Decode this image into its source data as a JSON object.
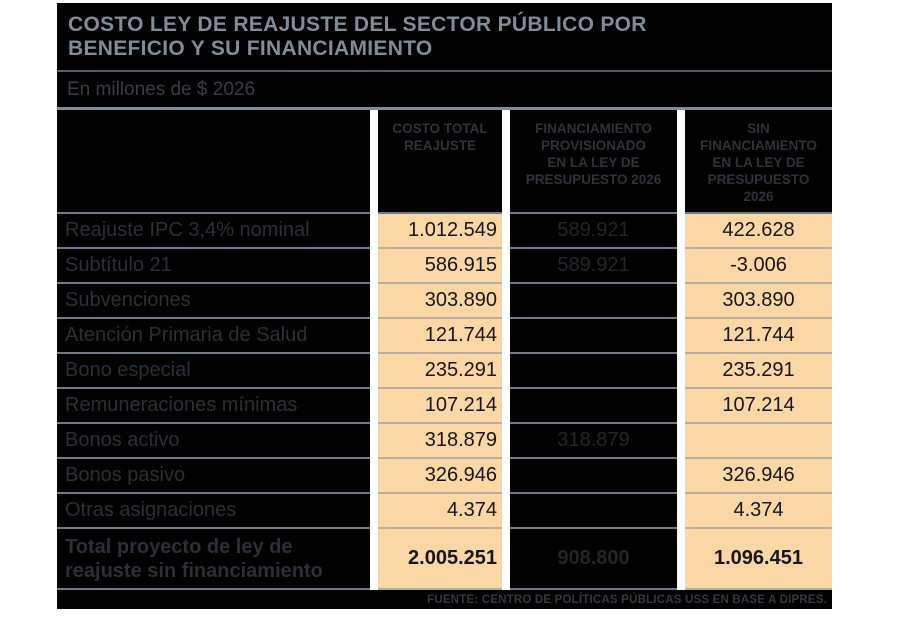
{
  "header": {
    "title": "COSTO LEY DE REAJUSTE DEL SECTOR PÚBLICO POR\nBENEFICIO Y SU FINANCIAMIENTO",
    "subtitle": "En millones de $ 2026"
  },
  "columns": {
    "c1": "COSTO TOTAL\nREAJUSTE",
    "c2": "FINANCIAMIENTO\nPROVISIONADO\nEN LA LEY DE\nPRESUPUESTO 2026",
    "c3": "SIN\nFINANCIAMIENTO\nEN LA LEY DE\nPRESUPUESTO\n2026"
  },
  "rows": [
    {
      "label": "Reajuste IPC 3,4% nominal",
      "c1": "1.012.549",
      "c2": "589.921",
      "c3": "422.628"
    },
    {
      "label": "Subtítulo 21",
      "c1": "586.915",
      "c2": "589.921",
      "c3": "-3.006"
    },
    {
      "label": "Subvenciones",
      "c1": "303.890",
      "c2": "",
      "c3": "303.890"
    },
    {
      "label": "Atención Primaria de Salud",
      "c1": "121.744",
      "c2": "",
      "c3": "121.744"
    },
    {
      "label": "Bono especial",
      "c1": "235.291",
      "c2": "",
      "c3": "235.291"
    },
    {
      "label": "Remuneraciones mínimas",
      "c1": "107.214",
      "c2": "",
      "c3": "107.214"
    },
    {
      "label": "Bonos activo",
      "c1": "318.879",
      "c2": "318.879",
      "c3": ""
    },
    {
      "label": "Bonos pasivo",
      "c1": "326.946",
      "c2": "",
      "c3": "326.946"
    },
    {
      "label": "Otras asignaciones",
      "c1": "4.374",
      "c2": "",
      "c3": "4.374"
    }
  ],
  "total": {
    "label": "Total proyecto de ley de\nreajuste sin financiamiento",
    "c1": "2.005.251",
    "c2": "908.800",
    "c3": "1.096.451"
  },
  "source": "FUENTE: CENTRO DE POLÍTICAS PÚBLICAS USS EN BASE A DIPRES.",
  "colors": {
    "peach": "#FBD7A5",
    "slate": "#828C96",
    "background": "#000000"
  },
  "chart_data": {
    "type": "table",
    "title": "COSTO LEY DE REAJUSTE DEL SECTOR PÚBLICO POR BENEFICIO Y SU FINANCIAMIENTO",
    "units": "En millones de $ 2026",
    "columns": [
      "",
      "COSTO TOTAL REAJUSTE",
      "FINANCIAMIENTO PROVISIONADO EN LA LEY DE PRESUPUESTO 2026",
      "SIN FINANCIAMIENTO EN LA LEY DE PRESUPUESTO 2026"
    ],
    "rows": [
      [
        "Reajuste IPC 3,4% nominal",
        1012549,
        589921,
        422628
      ],
      [
        "Subtítulo 21",
        586915,
        589921,
        -3006
      ],
      [
        "Subvenciones",
        303890,
        null,
        303890
      ],
      [
        "Atención Primaria de Salud",
        121744,
        null,
        121744
      ],
      [
        "Bono especial",
        235291,
        null,
        235291
      ],
      [
        "Remuneraciones mínimas",
        107214,
        null,
        107214
      ],
      [
        "Bonos activo",
        318879,
        318879,
        null
      ],
      [
        "Bonos pasivo",
        326946,
        null,
        326946
      ],
      [
        "Otras asignaciones",
        4374,
        null,
        4374
      ],
      [
        "Total proyecto de ley de reajuste sin financiamiento",
        2005251,
        908800,
        1096451
      ]
    ],
    "source": "FUENTE: CENTRO DE POLÍTICAS PÚBLICAS USS EN BASE A DIPRES."
  }
}
